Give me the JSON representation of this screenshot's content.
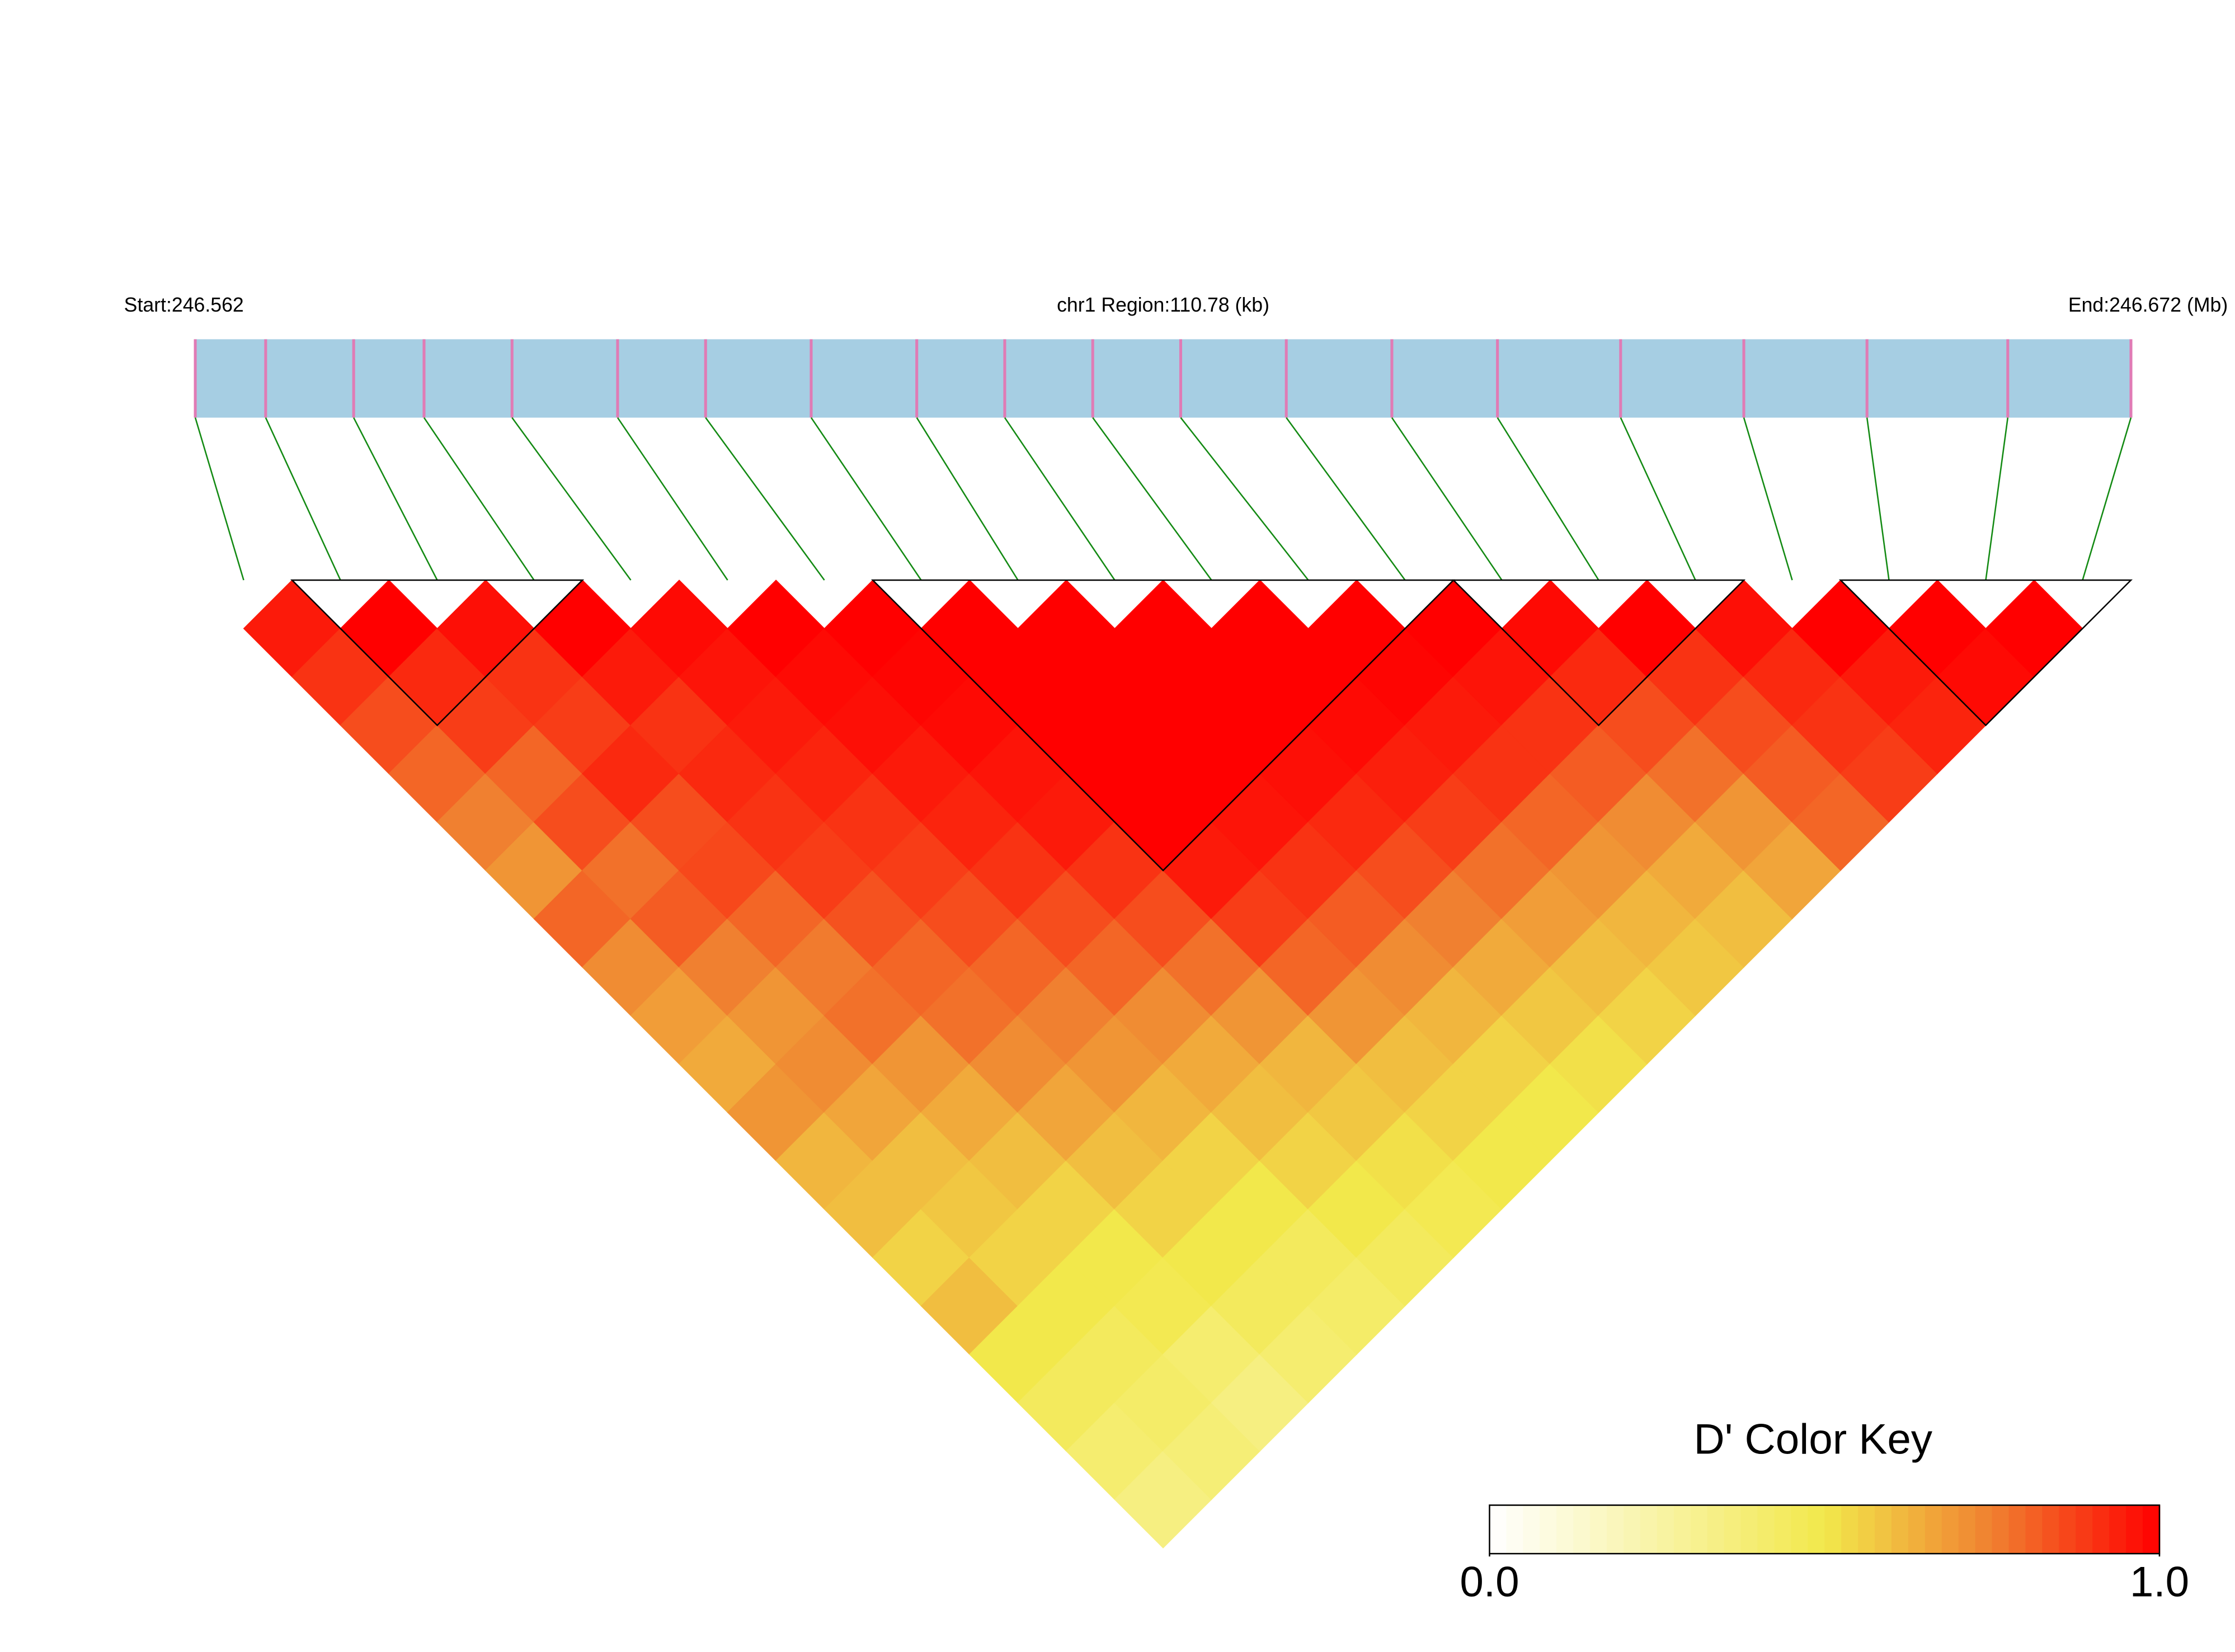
{
  "chart_data": {
    "type": "heatmap",
    "start_label": "Start:246.562",
    "region_label": "chr1 Region:110.78 (kb)",
    "end_label": "End:246.672 (Mb)",
    "positions": [
      246.562,
      246.566,
      246.571,
      246.575,
      246.58,
      246.586,
      246.591,
      246.597,
      246.603,
      246.608,
      246.613,
      246.618,
      246.624,
      246.63,
      246.636,
      246.643,
      246.65,
      246.657,
      246.665,
      246.672
    ],
    "xlim": [
      246.562,
      246.672
    ],
    "bar_color": "#a6cee3",
    "snp_color": "#e07bb5",
    "link_color": "#138a13",
    "block_color": "#000000",
    "dprime": [
      [
        0.95,
        0.9,
        0.85,
        0.8,
        0.75,
        0.7,
        0.8,
        0.72,
        0.68,
        0.65,
        0.7,
        0.62,
        0.6,
        0.55,
        0.6,
        0.5,
        0.45,
        0.4,
        0.35
      ],
      [
        1,
        0.92,
        0.88,
        0.8,
        0.85,
        0.78,
        0.82,
        0.75,
        0.7,
        0.72,
        0.66,
        0.6,
        0.58,
        0.55,
        0.5,
        0.45,
        0.42,
        0.38
      ],
      [
        0.97,
        0.9,
        0.88,
        0.92,
        0.85,
        0.86,
        0.8,
        0.76,
        0.78,
        0.7,
        0.65,
        0.6,
        0.55,
        0.5,
        0.48,
        0.4,
        0.35
      ],
      [
        1,
        0.95,
        0.9,
        0.92,
        0.9,
        0.88,
        0.84,
        0.8,
        0.78,
        0.72,
        0.66,
        0.6,
        0.55,
        0.5,
        0.45,
        0.4
      ],
      [
        0.98,
        0.96,
        0.95,
        0.93,
        0.9,
        0.88,
        0.85,
        0.8,
        0.75,
        0.7,
        0.62,
        0.55,
        0.5,
        0.45,
        0.42
      ],
      [
        1,
        0.98,
        0.97,
        0.95,
        0.93,
        0.9,
        0.85,
        0.8,
        0.72,
        0.65,
        0.6,
        0.55,
        0.5,
        0.45
      ],
      [
        1,
        0.99,
        0.98,
        0.96,
        0.95,
        0.9,
        0.85,
        0.78,
        0.7,
        0.62,
        0.58,
        0.52,
        0.48
      ],
      [
        1,
        1,
        1,
        1,
        1,
        0.95,
        0.88,
        0.8,
        0.7,
        0.6,
        0.55,
        0.5
      ],
      [
        1,
        1,
        1,
        1,
        0.96,
        0.9,
        0.82,
        0.72,
        0.62,
        0.55,
        0.5
      ],
      [
        1,
        1,
        1,
        0.97,
        0.92,
        0.85,
        0.75,
        0.65,
        0.58,
        0.52
      ],
      [
        1,
        1,
        0.98,
        0.94,
        0.88,
        0.78,
        0.68,
        0.6,
        0.55
      ],
      [
        1,
        0.99,
        0.95,
        0.9,
        0.8,
        0.7,
        0.62,
        0.58
      ],
      [
        1,
        0.96,
        0.9,
        0.82,
        0.72,
        0.65,
        0.6
      ],
      [
        0.98,
        0.92,
        0.85,
        0.78,
        0.7,
        0.66
      ],
      [
        1,
        0.9,
        0.85,
        0.82,
        0.8
      ],
      [
        0.97,
        0.92,
        0.9,
        0.88
      ],
      [
        1,
        0.95,
        0.93
      ],
      [
        1,
        0.98
      ],
      [
        1
      ]
    ],
    "blocks": [
      [
        1,
        3
      ],
      [
        7,
        12
      ],
      [
        13,
        15
      ],
      [
        17,
        19
      ]
    ],
    "colorbar_title": "D' Color Key",
    "clim": [
      0,
      1
    ],
    "cticks": [
      {
        "value": 0,
        "label": "0.0"
      },
      {
        "value": 1,
        "label": "1.0"
      }
    ],
    "colorscale": [
      [
        0,
        "#ffffff"
      ],
      [
        0.5,
        "#f2e84b"
      ],
      [
        0.75,
        "#f08030"
      ],
      [
        1,
        "#ff0000"
      ]
    ]
  }
}
